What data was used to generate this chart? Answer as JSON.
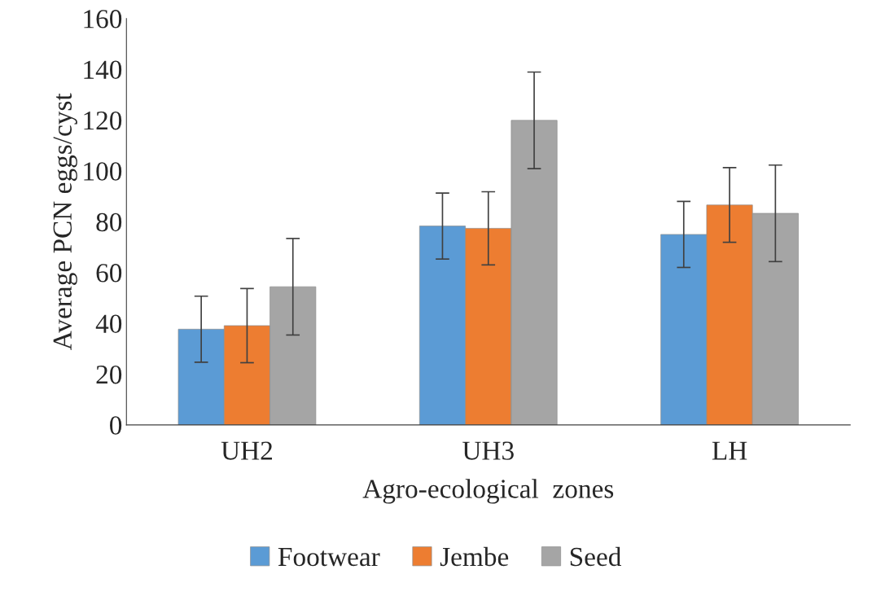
{
  "chart_data": {
    "type": "bar",
    "xlabel": "Agro-ecological  zones",
    "ylabel": "Average PCN eggs/cyst",
    "categories": [
      "UH2",
      "UH3",
      "LH"
    ],
    "series": [
      {
        "name": "Footwear",
        "color": "#5b9bd5",
        "values": [
          37.7,
          78.3,
          75
        ],
        "errors": [
          13,
          13,
          13
        ]
      },
      {
        "name": "Jembe",
        "color": "#ed7d31",
        "values": [
          39.1,
          77.4,
          86.6
        ],
        "errors": [
          14.6,
          14.4,
          14.7
        ]
      },
      {
        "name": "Seed",
        "color": "#a5a5a5",
        "values": [
          54.4,
          119.9,
          83.3
        ],
        "errors": [
          19,
          19,
          19
        ]
      }
    ],
    "ylim": [
      0,
      160
    ],
    "yticks": [
      0,
      20,
      40,
      60,
      80,
      100,
      120,
      140,
      160
    ],
    "grid": false,
    "legend": "bottom"
  }
}
